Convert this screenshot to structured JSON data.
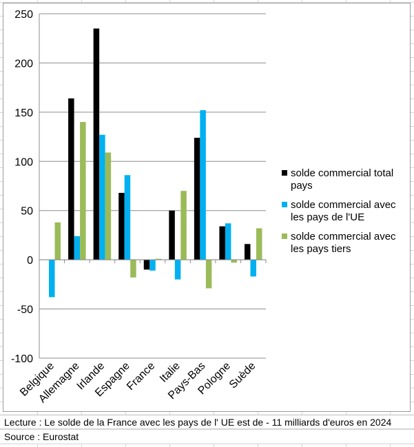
{
  "chart_data": {
    "type": "bar",
    "categories": [
      "Belgique",
      "Allemagne",
      "Irlande",
      "Espagne",
      "France",
      "Italie",
      "Pays-Bas",
      "Pologne",
      "Suède"
    ],
    "series": [
      {
        "name": "solde commercial total pays",
        "legend_lines": [
          "solde commercial total",
          "pays"
        ],
        "color": "#000000",
        "values": [
          0,
          164,
          235,
          68,
          -10,
          50,
          124,
          34,
          16
        ]
      },
      {
        "name": "solde commercial avec les pays de l'UE",
        "legend_lines": [
          "solde commercial avec",
          "les pays de l'UE"
        ],
        "color": "#00b0f0",
        "values": [
          -38,
          24,
          127,
          86,
          -11,
          -20,
          152,
          37,
          -17
        ]
      },
      {
        "name": "solde commercial avec les pays tiers",
        "legend_lines": [
          "solde commercial avec",
          "les pays tiers"
        ],
        "color": "#9bbb59",
        "values": [
          38,
          140,
          109,
          -18,
          1,
          70,
          -29,
          -3,
          32
        ]
      }
    ],
    "y_ticks": [
      "250",
      "200",
      "150",
      "100",
      "50",
      "0",
      "-50",
      "-100"
    ],
    "ylim": [
      -100,
      250
    ],
    "grid": true,
    "legend_position": "right"
  },
  "notes": {
    "lecture": "Lecture : Le solde de la France avec les pays de l' UE est de - 11 milliards d'euros en 2024",
    "source": "Source : Eurostat"
  }
}
